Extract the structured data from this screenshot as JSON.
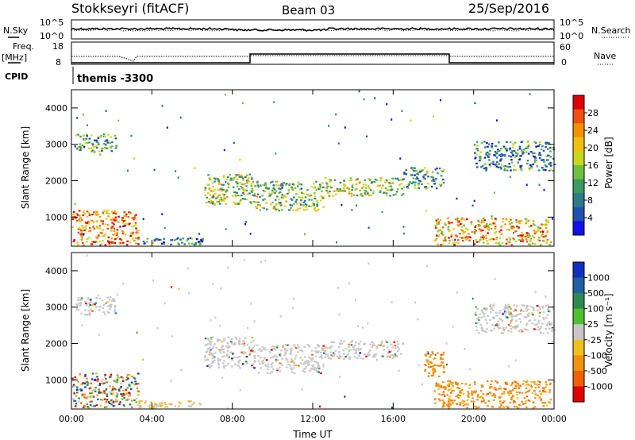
{
  "header": {
    "station": "Stokkseyri (fitACF)",
    "beam": "Beam 03",
    "date": "25/Sep/2016"
  },
  "summary_panels": {
    "nsky_label": "N.Sky",
    "nsky_ticks": [
      "10^5",
      "10^0"
    ],
    "nsearch_label": "N.Search",
    "nsearch_ticks": [
      "10^5",
      "10^0"
    ],
    "freq_label_1": "Freq.",
    "freq_label_2": "[MHz]",
    "freq_ticks": [
      "18",
      "8"
    ],
    "nave_label": "Nave",
    "nave_ticks": [
      "60",
      "0"
    ],
    "cpid_label": "CPID",
    "cpid_value": "themis -3300"
  },
  "chart_data": [
    {
      "type": "heatmap",
      "name": "power",
      "ylabel": "Slant Range [km]",
      "ylim": [
        200,
        4500
      ],
      "yticks": [
        "1000",
        "2000",
        "3000",
        "4000"
      ],
      "xlim_hours": [
        0,
        24
      ],
      "colorbar_label": "Power [dB]",
      "colorbar_ticks": [
        "28",
        "24",
        "20",
        "16",
        "12",
        "8",
        "4"
      ],
      "colorbar_colors": [
        "#e00000",
        "#f05010",
        "#f59000",
        "#f0c010",
        "#c8d820",
        "#70c040",
        "#3a9a60",
        "#2e7a8a",
        "#2050b0",
        "#1010e8"
      ],
      "regions": [
        {
          "t": [
            0.0,
            3.3
          ],
          "r": [
            250,
            1200
          ],
          "level": 0.8
        },
        {
          "t": [
            0.2,
            2.2
          ],
          "r": [
            2800,
            3300
          ],
          "level": 0.35
        },
        {
          "t": [
            3.3,
            6.5
          ],
          "r": [
            250,
            450
          ],
          "level": 0.25
        },
        {
          "t": [
            6.6,
            9.0
          ],
          "r": [
            1350,
            2200
          ],
          "level": 0.5
        },
        {
          "t": [
            9.0,
            12.5
          ],
          "r": [
            1200,
            2000
          ],
          "level": 0.45
        },
        {
          "t": [
            12.5,
            16.5
          ],
          "r": [
            1600,
            2100
          ],
          "level": 0.5
        },
        {
          "t": [
            16.5,
            18.5
          ],
          "r": [
            1800,
            2400
          ],
          "level": 0.3
        },
        {
          "t": [
            18.0,
            23.8
          ],
          "r": [
            250,
            1000
          ],
          "level": 0.7
        },
        {
          "t": [
            20.0,
            24.0
          ],
          "r": [
            2300,
            3100
          ],
          "level": 0.25
        }
      ]
    },
    {
      "type": "heatmap",
      "name": "velocity",
      "ylabel": "Slant Range [km]",
      "ylim": [
        200,
        4500
      ],
      "yticks": [
        "1000",
        "2000",
        "3000",
        "4000"
      ],
      "xlim_hours": [
        0,
        24
      ],
      "xlabel": "Time UT",
      "xticks": [
        "00:00",
        "04:00",
        "08:00",
        "12:00",
        "16:00",
        "20:00",
        "00:00"
      ],
      "colorbar_label": "Velocity [m s⁻¹]",
      "colorbar_ticks": [
        "1000",
        "500",
        "100",
        "25",
        "-25",
        "-100",
        "-500",
        "-1000"
      ],
      "colorbar_colors": [
        "#1030c0",
        "#2060a0",
        "#2e8a50",
        "#50c030",
        "#c8c8c8",
        "#f0c020",
        "#f59010",
        "#f06000",
        "#e00000"
      ],
      "regions": [
        {
          "t": [
            0.0,
            3.3
          ],
          "r": [
            250,
            1200
          ],
          "v": "mix"
        },
        {
          "t": [
            0.2,
            2.2
          ],
          "r": [
            2800,
            3300
          ],
          "v": "grey"
        },
        {
          "t": [
            3.3,
            6.5
          ],
          "r": [
            250,
            450
          ],
          "v": "yellow"
        },
        {
          "t": [
            6.6,
            9.0
          ],
          "r": [
            1350,
            2200
          ],
          "v": "grey"
        },
        {
          "t": [
            9.0,
            12.5
          ],
          "r": [
            1200,
            2000
          ],
          "v": "grey"
        },
        {
          "t": [
            12.5,
            16.5
          ],
          "r": [
            1600,
            2100
          ],
          "v": "grey"
        },
        {
          "t": [
            17.5,
            18.5
          ],
          "r": [
            1100,
            1800
          ],
          "v": "orange"
        },
        {
          "t": [
            18.0,
            23.8
          ],
          "r": [
            250,
            1000
          ],
          "v": "orange"
        },
        {
          "t": [
            20.0,
            24.0
          ],
          "r": [
            2300,
            3100
          ],
          "v": "grey"
        }
      ]
    }
  ]
}
